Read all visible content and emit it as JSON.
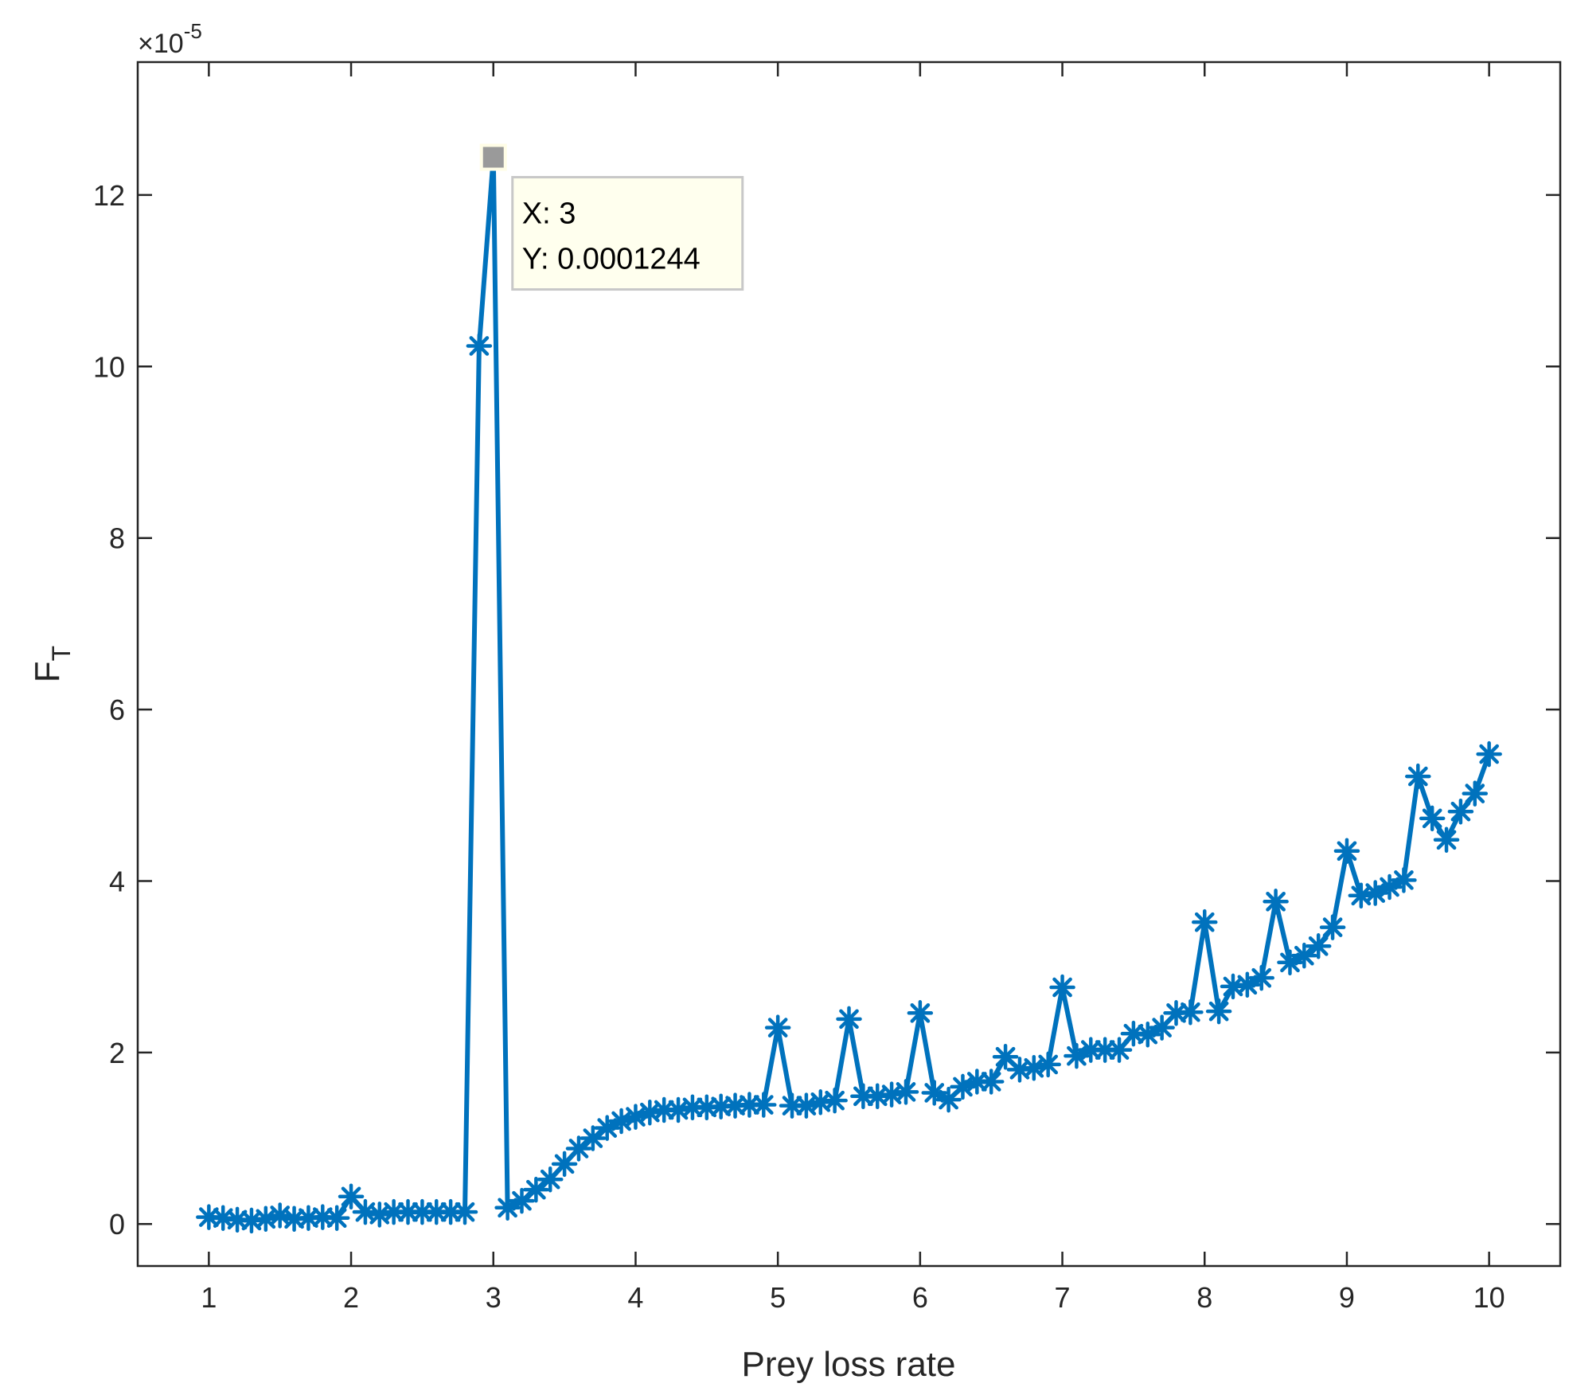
{
  "chart_data": {
    "type": "line",
    "xlabel": "Prey loss rate",
    "ylabel": "F",
    "ylabel_subscript": "T",
    "y_multiplier": {
      "prefix": "×10",
      "exponent": "-5"
    },
    "xlim": [
      0.5,
      10.5
    ],
    "ylim": [
      -4.9e-06,
      0.0001355
    ],
    "x_ticks": [
      1,
      2,
      3,
      4,
      5,
      6,
      7,
      8,
      9,
      10
    ],
    "y_ticks": [
      0,
      2e-05,
      4e-05,
      6e-05,
      8e-05,
      0.0001,
      0.00012
    ],
    "y_tick_labels": [
      "0",
      "2",
      "4",
      "6",
      "8",
      "10",
      "12"
    ],
    "grid": false,
    "box": true,
    "marker": "asterisk",
    "series": [
      {
        "color": "#0072BD",
        "x": [
          1.0,
          1.1,
          1.2,
          1.3,
          1.4,
          1.5,
          1.6,
          1.7,
          1.8,
          1.9,
          2.0,
          2.1,
          2.2,
          2.3,
          2.4,
          2.5,
          2.6,
          2.7,
          2.8,
          2.9,
          3.0,
          3.1,
          3.2,
          3.3,
          3.4,
          3.5,
          3.6,
          3.7,
          3.8,
          3.9,
          4.0,
          4.1,
          4.2,
          4.3,
          4.4,
          4.5,
          4.6,
          4.7,
          4.8,
          4.9,
          5.0,
          5.1,
          5.2,
          5.3,
          5.4,
          5.5,
          5.6,
          5.7,
          5.8,
          5.9,
          6.0,
          6.1,
          6.2,
          6.3,
          6.4,
          6.5,
          6.6,
          6.7,
          6.8,
          6.9,
          7.0,
          7.1,
          7.2,
          7.3,
          7.4,
          7.5,
          7.6,
          7.7,
          7.8,
          7.9,
          8.0,
          8.1,
          8.2,
          8.3,
          8.4,
          8.5,
          8.6,
          8.7,
          8.8,
          8.9,
          9.0,
          9.1,
          9.2,
          9.3,
          9.4,
          9.5,
          9.6,
          9.7,
          9.8,
          9.9,
          10.0
        ],
        "y": [
          8e-07,
          7e-07,
          5e-07,
          4e-07,
          6e-07,
          1e-06,
          6e-07,
          7e-07,
          8e-07,
          7e-07,
          3.2e-06,
          1.4e-06,
          1.1e-06,
          1.4e-06,
          1.4e-06,
          1.4e-06,
          1.4e-06,
          1.4e-06,
          1.4e-06,
          0.0001024,
          0.0001244,
          1.9e-06,
          2.7e-06,
          4e-06,
          5.2e-06,
          7e-06,
          8.8e-06,
          1e-05,
          1.12e-05,
          1.2e-05,
          1.25e-05,
          1.3e-05,
          1.33e-05,
          1.33e-05,
          1.36e-05,
          1.36e-05,
          1.37e-05,
          1.38e-05,
          1.39e-05,
          1.39e-05,
          2.29e-05,
          1.38e-05,
          1.38e-05,
          1.42e-05,
          1.44e-05,
          2.39e-05,
          1.49e-05,
          1.49e-05,
          1.51e-05,
          1.54e-05,
          2.46e-05,
          1.53e-05,
          1.45e-05,
          1.6e-05,
          1.66e-05,
          1.66e-05,
          1.95e-05,
          1.8e-05,
          1.82e-05,
          1.86e-05,
          2.76e-05,
          1.96e-05,
          2.03e-05,
          2.03e-05,
          2.03e-05,
          2.22e-05,
          2.21e-05,
          2.29e-05,
          2.46e-05,
          2.47e-05,
          3.52e-05,
          2.48e-05,
          2.77e-05,
          2.79e-05,
          2.87e-05,
          3.76e-05,
          3.05e-05,
          3.13e-05,
          3.24e-05,
          3.46e-05,
          4.35e-05,
          3.83e-05,
          3.86e-05,
          3.93e-05,
          4.01e-05,
          5.22e-05,
          4.73e-05,
          4.48e-05,
          4.81e-05,
          5.02e-05,
          5.48e-05
        ]
      }
    ],
    "datatip": {
      "x_text": "X: 3",
      "y_text": "Y: 0.0001244",
      "point": [
        3.0,
        0.0001244
      ]
    }
  }
}
